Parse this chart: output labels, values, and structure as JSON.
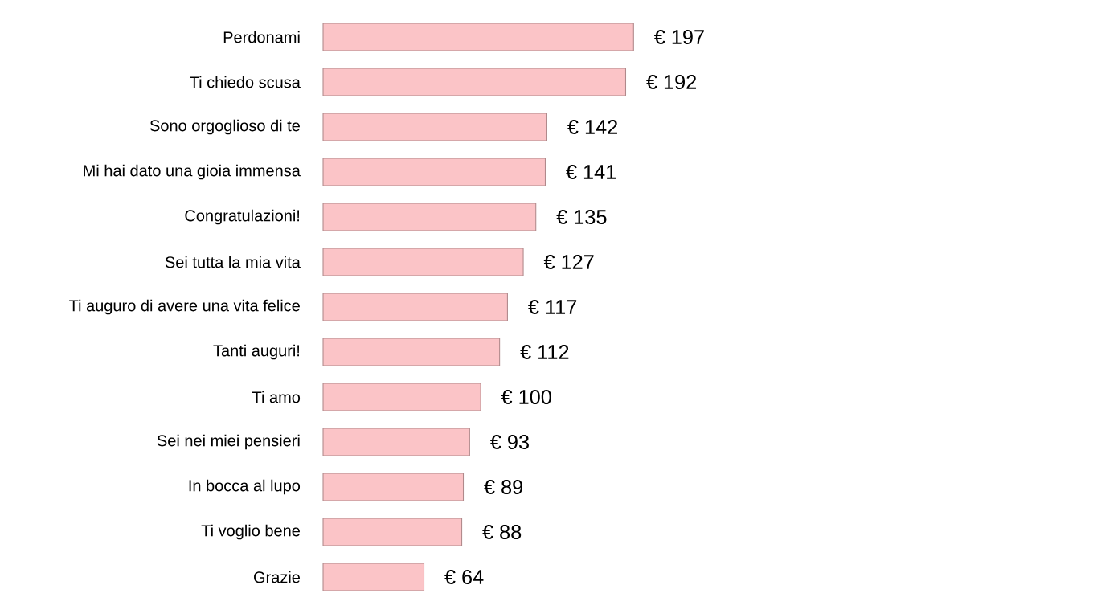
{
  "chart_data": {
    "type": "bar",
    "orientation": "horizontal",
    "categories": [
      "Perdonami",
      "Ti chiedo scusa",
      "Sono orgoglioso di te",
      "Mi hai dato una gioia immensa",
      "Congratulazioni!",
      "Sei tutta la mia vita",
      "Ti auguro di avere una vita felice",
      "Tanti auguri!",
      "Ti amo",
      "Sei nei miei pensieri",
      "In bocca al lupo",
      "Ti voglio bene",
      "Grazie"
    ],
    "values": [
      197,
      192,
      142,
      141,
      135,
      127,
      117,
      112,
      100,
      93,
      89,
      88,
      64
    ],
    "value_labels": [
      "€ 197",
      "€ 192",
      "€ 142",
      "€ 141",
      "€ 135",
      "€ 127",
      "€ 117",
      "€ 112",
      "€ 100",
      "€ 93",
      "€ 89",
      "€ 88",
      "€ 64"
    ],
    "color": "#fbc4c7"
  }
}
